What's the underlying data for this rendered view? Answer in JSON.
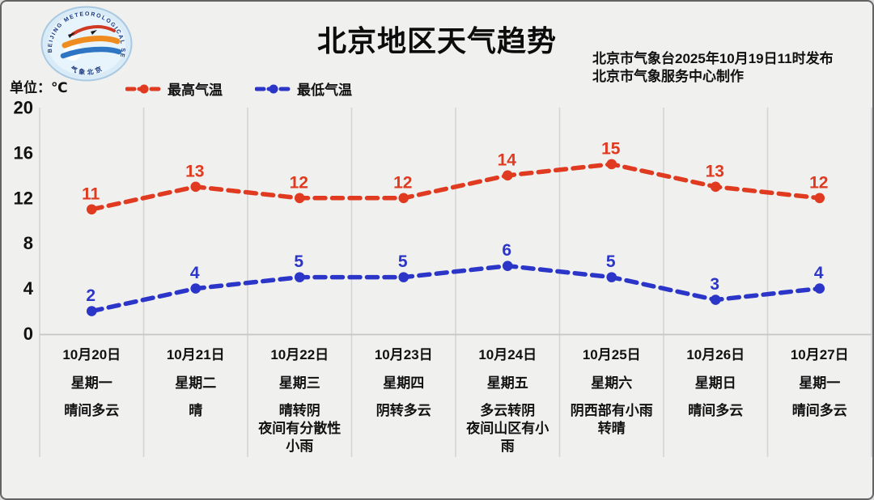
{
  "header": {
    "title": "北京地区天气趋势",
    "issued_by": "北京市气象台2025年10月19日11时发布",
    "produced_by": "北京市气象服务中心制作",
    "unit_label": "单位：℃",
    "logo_text_top": "BEIJING METEOROLOGICAL SERVICE",
    "logo_text_bottom": "气象北京"
  },
  "legend": [
    {
      "label": "最高气温",
      "color": "#e03a20"
    },
    {
      "label": "最低气温",
      "color": "#2b36c9"
    }
  ],
  "chart_data": {
    "type": "line",
    "title": "北京地区天气趋势",
    "ylabel": "单位：℃",
    "ylim": [
      0,
      20
    ],
    "y_ticks": [
      0,
      4,
      8,
      12,
      16,
      20
    ],
    "grid": "vertical",
    "line_style": "dashed",
    "legend_position": "top-left",
    "categories": [
      "10月20日",
      "10月21日",
      "10月22日",
      "10月23日",
      "10月24日",
      "10月25日",
      "10月26日",
      "10月27日"
    ],
    "series": [
      {
        "name": "最高气温",
        "color": "#e03a20",
        "values": [
          11,
          13,
          12,
          12,
          14,
          15,
          13,
          12
        ]
      },
      {
        "name": "最低气温",
        "color": "#2b36c9",
        "values": [
          2,
          4,
          5,
          5,
          6,
          5,
          3,
          4
        ]
      }
    ],
    "days": [
      {
        "date": "10月20日",
        "weekday": "星期一",
        "weather": [
          "晴间多云"
        ]
      },
      {
        "date": "10月21日",
        "weekday": "星期二",
        "weather": [
          "晴"
        ]
      },
      {
        "date": "10月22日",
        "weekday": "星期三",
        "weather": [
          "晴转阴",
          "夜间有分散性",
          "小雨"
        ]
      },
      {
        "date": "10月23日",
        "weekday": "星期四",
        "weather": [
          "阴转多云"
        ]
      },
      {
        "date": "10月24日",
        "weekday": "星期五",
        "weather": [
          "多云转阴",
          "夜间山区有小",
          "雨"
        ]
      },
      {
        "date": "10月25日",
        "weekday": "星期六",
        "weather": [
          "阴西部有小雨",
          "转晴"
        ]
      },
      {
        "date": "10月26日",
        "weekday": "星期日",
        "weather": [
          "晴间多云"
        ]
      },
      {
        "date": "10月27日",
        "weekday": "星期一",
        "weather": [
          "晴间多云"
        ]
      }
    ],
    "colors": {
      "background": "#f0f0ef",
      "grid_line": "#d4d4d4",
      "axis_line": "#c6c6c6",
      "text": "#111111"
    }
  }
}
